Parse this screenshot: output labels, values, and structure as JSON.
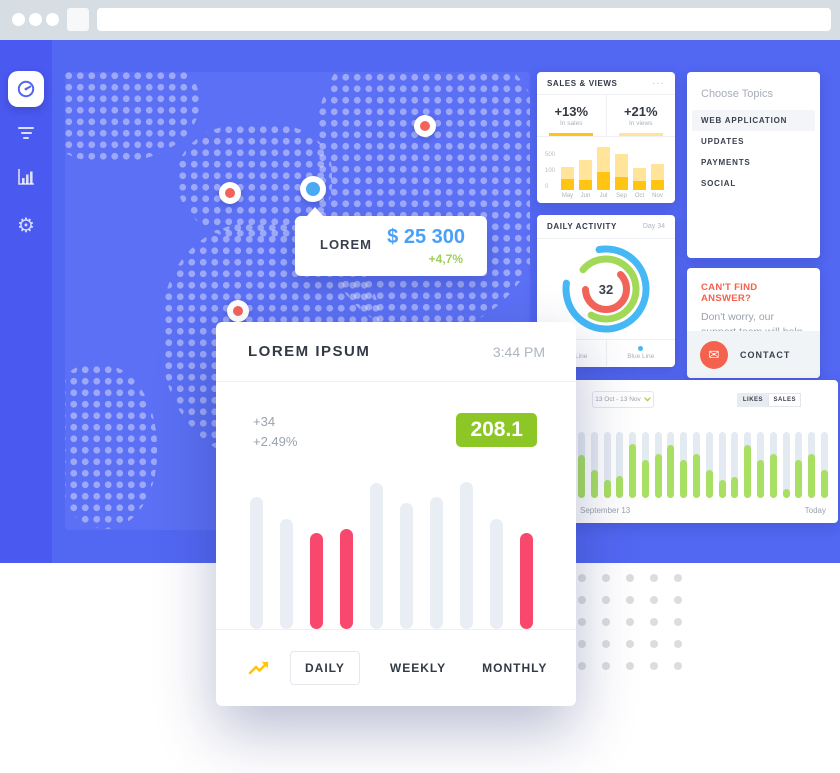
{
  "icons": {
    "gear_glyph": "⚙",
    "envelope_glyph": "✉",
    "menu_dots": "···"
  },
  "map": {
    "tooltip": {
      "label": "LOREM",
      "value": "$ 25 300",
      "change": "+4,7%"
    },
    "markers": [
      {
        "color": "red",
        "x": 360,
        "y": 54
      },
      {
        "color": "red",
        "x": 165,
        "y": 121
      },
      {
        "color": "blue",
        "x": 248,
        "y": 117
      },
      {
        "color": "red",
        "x": 173,
        "y": 239
      }
    ]
  },
  "sales_views": {
    "title": "SALES & VIEWS",
    "stats": [
      {
        "value": "+13%",
        "label": "In sales",
        "color": "#ffc512"
      },
      {
        "value": "+21%",
        "label": "In views",
        "color": "#ffe49a"
      }
    ],
    "chart_data": {
      "type": "bar",
      "stacked": true,
      "categories": [
        "May",
        "Jun",
        "Jul",
        "Sep",
        "Oct",
        "Nov"
      ],
      "series": [
        {
          "name": "In sales",
          "color": "#ffc512",
          "values": [
            11,
            10,
            18,
            13,
            9,
            10
          ]
        },
        {
          "name": "In views",
          "color": "#ffe49a",
          "values": [
            12,
            20,
            25,
            23,
            13,
            16
          ]
        }
      ],
      "yticks": [
        "500",
        "100",
        "0"
      ],
      "legend_position": "none",
      "grid": false
    }
  },
  "daily_activity": {
    "title": "DAILY ACTIVITY",
    "day": "Day 34",
    "center_value": "32",
    "legend": [
      {
        "label": "Green Line",
        "color": "#a2d958"
      },
      {
        "label": "Blue Line",
        "color": "#45b8f5"
      }
    ],
    "chart_data": {
      "type": "donut",
      "center_value": 32,
      "rings": [
        {
          "name": "outer-blue",
          "color": "#45b8f5",
          "coverage": 0.8
        },
        {
          "name": "middle-green",
          "color": "#a2d958",
          "coverage": 0.72
        },
        {
          "name": "inner-red",
          "color": "#f2635a",
          "coverage": 0.62
        }
      ]
    }
  },
  "topics": {
    "title": "Choose Topics",
    "items": [
      {
        "label": "WEB APPLICATION",
        "selected": true
      },
      {
        "label": "UPDATES",
        "selected": false
      },
      {
        "label": "PAYMENTS",
        "selected": false
      },
      {
        "label": "SOCIAL",
        "selected": false
      }
    ]
  },
  "support": {
    "title": "CAN'T FIND ANSWER?",
    "body": "Don't worry, our support team will help you",
    "button": "CONTACT"
  },
  "likes_sales": {
    "date_range": "13 Oct - 13 Nov",
    "toggles": [
      {
        "label": "LIKES",
        "active": true
      },
      {
        "label": "SALES",
        "active": false
      }
    ],
    "footer_left": "September 13",
    "footer_right": "Today",
    "chart_data": {
      "type": "bar",
      "unit": "percent_of_max",
      "values": [
        65,
        42,
        28,
        33,
        82,
        58,
        66,
        81,
        58,
        66,
        42,
        27,
        32,
        81,
        57,
        66,
        13,
        57,
        66,
        42
      ],
      "bar_color": "#a8e063",
      "track_color": "#e4eaf1",
      "x_start_label": "September 13",
      "x_end_label": "Today"
    }
  },
  "modal": {
    "title": "LOREM IPSUM",
    "time": "3:44 PM",
    "delta_count": "+34",
    "delta_percent": "+2.49%",
    "badge_value": "208.1",
    "tabs": [
      {
        "label": "DAILY",
        "active": true
      },
      {
        "label": "WEEKLY",
        "active": false
      },
      {
        "label": "MONTHLY",
        "active": false
      }
    ],
    "chart_data": {
      "type": "bar",
      "unit": "percent_of_max",
      "values": [
        90,
        75,
        65,
        68,
        99,
        86,
        90,
        100,
        75,
        65
      ],
      "highlight": [
        false,
        false,
        true,
        true,
        false,
        false,
        false,
        false,
        false,
        true
      ],
      "colors": {
        "default": "#e9eef4",
        "highlight": "#f9486d"
      }
    }
  },
  "colors": {
    "topbar": "#d7dee3",
    "sidebar": "#4a59f0",
    "workspace": "#5267f2",
    "map_panel": "#5b70f4",
    "accent_blue": "#4aa0f6",
    "accent_green": "#8dc727",
    "accent_pink": "#f9486d",
    "accent_coral": "#f4614d",
    "accent_yellow": "#ffc512"
  }
}
